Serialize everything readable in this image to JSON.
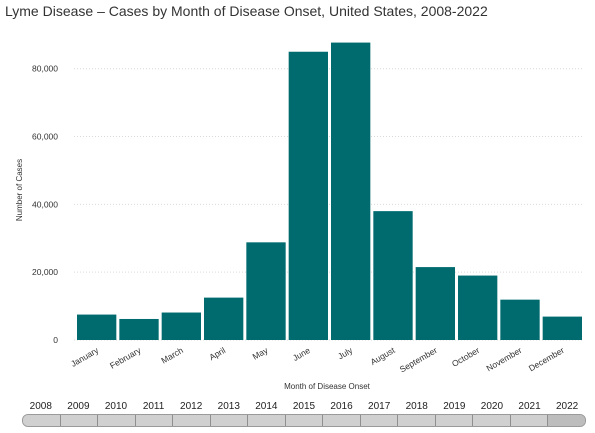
{
  "chart_data": {
    "type": "bar",
    "title": "Lyme Disease – Cases by Month of Disease Onset, United States, 2008-2022",
    "xlabel": "Month of Disease Onset",
    "ylabel": "Number of Cases",
    "categories": [
      "January",
      "February",
      "March",
      "April",
      "May",
      "June",
      "July",
      "August",
      "September",
      "October",
      "November",
      "December"
    ],
    "values": [
      7500,
      6200,
      8100,
      12500,
      28800,
      85000,
      87700,
      38000,
      21500,
      19000,
      11900,
      6900
    ],
    "ylim": [
      0,
      92000
    ],
    "yticks": [
      0,
      20000,
      40000,
      60000,
      80000
    ],
    "ytick_labels": [
      "0",
      "20,000",
      "40,000",
      "60,000",
      "80,000"
    ],
    "bar_color": "#006b6f",
    "grid": true,
    "legend": "none"
  },
  "timeline": {
    "years": [
      "2008",
      "2009",
      "2010",
      "2011",
      "2012",
      "2013",
      "2014",
      "2015",
      "2016",
      "2017",
      "2018",
      "2019",
      "2020",
      "2021",
      "2022"
    ],
    "selected_index": 14
  }
}
